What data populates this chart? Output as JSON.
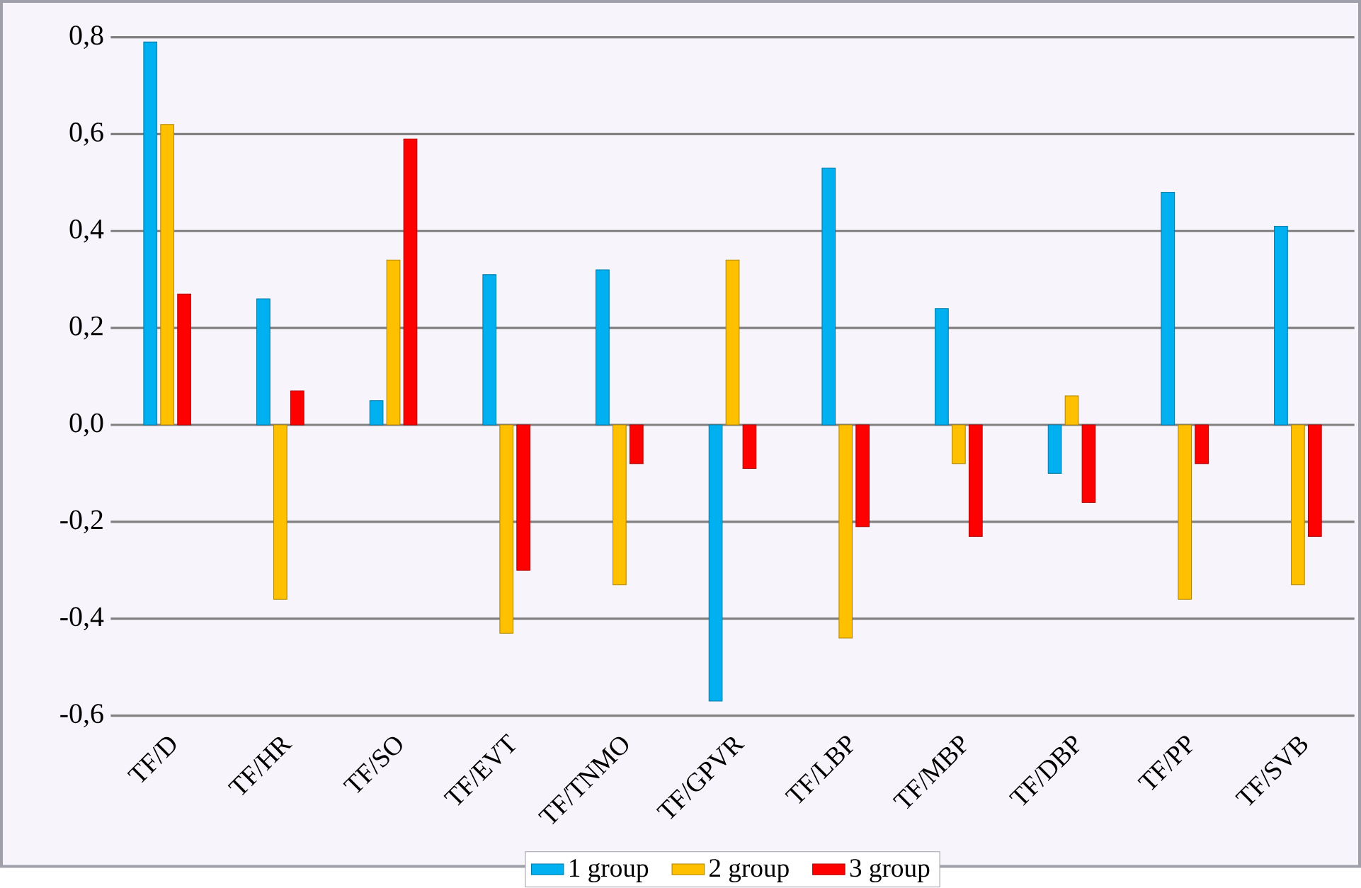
{
  "chart_data": {
    "type": "bar",
    "categories": [
      "TF/D",
      "TF/HR",
      "TF/SO",
      "TF/EVT",
      "TF/TNMO",
      "TF/GPVR",
      "TF/LBP",
      "TF/MBP",
      "TF/DBP",
      "TF/PP",
      "TF/SVB"
    ],
    "series": [
      {
        "name": "1 group",
        "color": "#00b0f0",
        "values": [
          0.79,
          0.26,
          0.05,
          0.31,
          0.32,
          -0.57,
          0.53,
          0.24,
          -0.1,
          0.48,
          0.41
        ]
      },
      {
        "name": "2 group",
        "color": "#ffc000",
        "values": [
          0.62,
          -0.36,
          0.34,
          -0.43,
          -0.33,
          0.34,
          -0.44,
          -0.08,
          0.06,
          -0.36,
          -0.33
        ]
      },
      {
        "name": "3 group",
        "color": "#ff0000",
        "values": [
          0.27,
          0.07,
          0.59,
          -0.3,
          -0.08,
          -0.09,
          -0.21,
          -0.23,
          -0.16,
          -0.08,
          -0.23
        ]
      }
    ],
    "ylim": [
      -0.6,
      0.8
    ],
    "yticks": [
      {
        "value": -0.6,
        "label": "-0,6"
      },
      {
        "value": -0.4,
        "label": "-0,4"
      },
      {
        "value": -0.2,
        "label": "-0,2"
      },
      {
        "value": 0,
        "label": "0,0"
      },
      {
        "value": 0.2,
        "label": "0,2"
      },
      {
        "value": 0.4,
        "label": "0,4"
      },
      {
        "value": 0.6,
        "label": "0,6"
      },
      {
        "value": 0.8,
        "label": "0,8"
      }
    ],
    "grid": "y",
    "legend": "bottom"
  }
}
